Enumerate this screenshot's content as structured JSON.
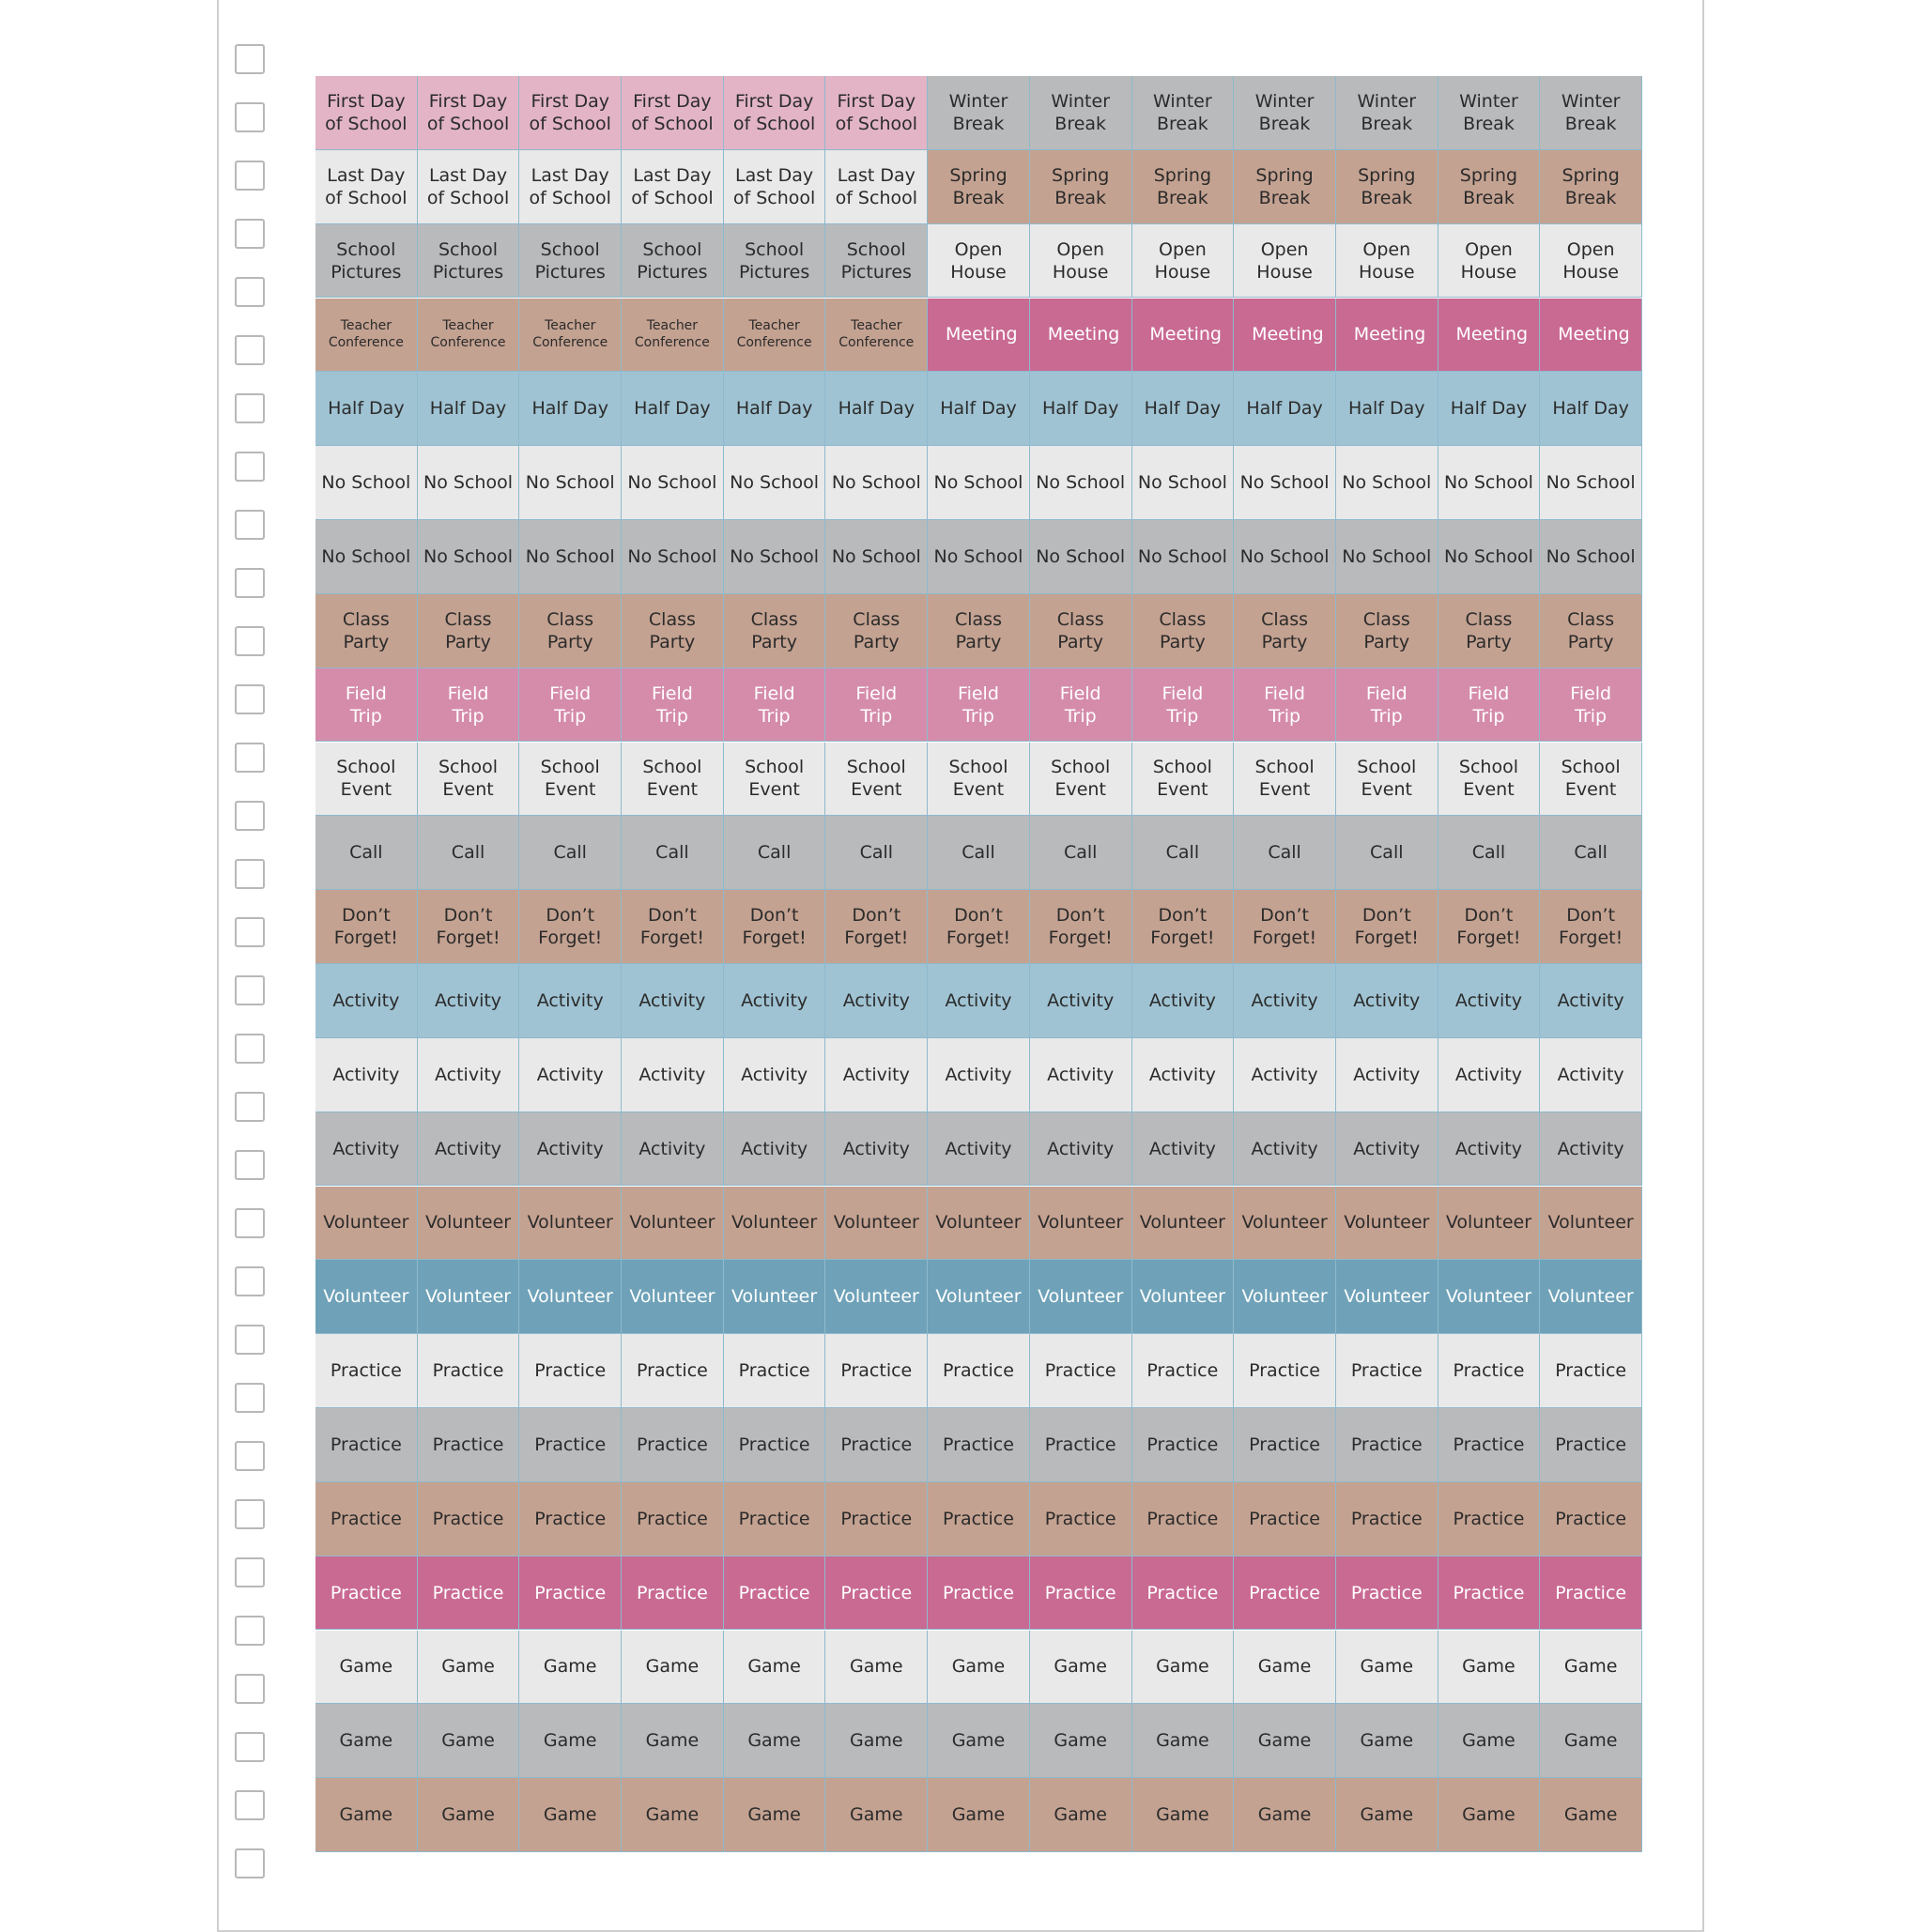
{
  "rows": [
    [
      "First Day of School",
      "First Day of School",
      "First Day of School",
      "First Day of School",
      "First Day of School",
      "First Day of School",
      "Winter Break",
      "Winter Break",
      "Winter Break",
      "Winter Break",
      "Winter Break",
      "Winter Break",
      "Winter Break"
    ],
    [
      "Last Day of School",
      "Last Day of School",
      "Last Day of School",
      "Last Day of School",
      "Last Day of School",
      "Last Day of School",
      "Spring Break",
      "Spring Break",
      "Spring Break",
      "Spring Break",
      "Spring Break",
      "Spring Break",
      "Spring Break"
    ],
    [
      "School Pictures",
      "School Pictures",
      "School Pictures",
      "School Pictures",
      "School Pictures",
      "School Pictures",
      "Open House",
      "Open House",
      "Open House",
      "Open House",
      "Open House",
      "Open House",
      "Open House"
    ],
    [
      "Teacher Conference",
      "Teacher Conference",
      "Teacher Conference",
      "Teacher Conference",
      "Teacher Conference",
      "Teacher Conference",
      "Meeting",
      "Meeting",
      "Meeting",
      "Meeting",
      "Meeting",
      "Meeting",
      "Meeting"
    ],
    [
      "Half Day",
      "Half Day",
      "Half Day",
      "Half Day",
      "Half Day",
      "Half Day",
      "Half Day",
      "Half Day",
      "Half Day",
      "Half Day",
      "Half Day",
      "Half Day",
      "Half Day"
    ],
    [
      "No School",
      "No School",
      "No School",
      "No School",
      "No School",
      "No School",
      "No School",
      "No School",
      "No School",
      "No School",
      "No School",
      "No School",
      "No School"
    ],
    [
      "No School",
      "No School",
      "No School",
      "No School",
      "No School",
      "No School",
      "No School",
      "No School",
      "No School",
      "No School",
      "No School",
      "No School",
      "No School"
    ],
    [
      "Class Party",
      "Class Party",
      "Class Party",
      "Class Party",
      "Class Party",
      "Class Party",
      "Class Party",
      "Class Party",
      "Class Party",
      "Class Party",
      "Class Party",
      "Class Party",
      "Class Party"
    ],
    [
      "Field Trip",
      "Field Trip",
      "Field Trip",
      "Field Trip",
      "Field Trip",
      "Field Trip",
      "Field Trip",
      "Field Trip",
      "Field Trip",
      "Field Trip",
      "Field Trip",
      "Field Trip",
      "Field Trip"
    ],
    [
      "School Event",
      "School Event",
      "School Event",
      "School Event",
      "School Event",
      "School Event",
      "School Event",
      "School Event",
      "School Event",
      "School Event",
      "School Event",
      "School Event",
      "School Event"
    ],
    [
      "Call",
      "Call",
      "Call",
      "Call",
      "Call",
      "Call",
      "Call",
      "Call",
      "Call",
      "Call",
      "Call",
      "Call",
      "Call"
    ],
    [
      "Don’t Forget!",
      "Don’t Forget!",
      "Don’t Forget!",
      "Don’t Forget!",
      "Don’t Forget!",
      "Don’t Forget!",
      "Don’t Forget!",
      "Don’t Forget!",
      "Don’t Forget!",
      "Don’t Forget!",
      "Don’t Forget!",
      "Don’t Forget!",
      "Don’t Forget!"
    ],
    [
      "Activity",
      "Activity",
      "Activity",
      "Activity",
      "Activity",
      "Activity",
      "Activity",
      "Activity",
      "Activity",
      "Activity",
      "Activity",
      "Activity",
      "Activity"
    ],
    [
      "Activity",
      "Activity",
      "Activity",
      "Activity",
      "Activity",
      "Activity",
      "Activity",
      "Activity",
      "Activity",
      "Activity",
      "Activity",
      "Activity",
      "Activity"
    ],
    [
      "Activity",
      "Activity",
      "Activity",
      "Activity",
      "Activity",
      "Activity",
      "Activity",
      "Activity",
      "Activity",
      "Activity",
      "Activity",
      "Activity",
      "Activity"
    ],
    [
      "Volunteer",
      "Volunteer",
      "Volunteer",
      "Volunteer",
      "Volunteer",
      "Volunteer",
      "Volunteer",
      "Volunteer",
      "Volunteer",
      "Volunteer",
      "Volunteer",
      "Volunteer",
      "Volunteer"
    ],
    [
      "Volunteer",
      "Volunteer",
      "Volunteer",
      "Volunteer",
      "Volunteer",
      "Volunteer",
      "Volunteer",
      "Volunteer",
      "Volunteer",
      "Volunteer",
      "Volunteer",
      "Volunteer",
      "Volunteer"
    ],
    [
      "Practice",
      "Practice",
      "Practice",
      "Practice",
      "Practice",
      "Practice",
      "Practice",
      "Practice",
      "Practice",
      "Practice",
      "Practice",
      "Practice",
      "Practice"
    ],
    [
      "Practice",
      "Practice",
      "Practice",
      "Practice",
      "Practice",
      "Practice",
      "Practice",
      "Practice",
      "Practice",
      "Practice",
      "Practice",
      "Practice",
      "Practice"
    ],
    [
      "Practice",
      "Practice",
      "Practice",
      "Practice",
      "Practice",
      "Practice",
      "Practice",
      "Practice",
      "Practice",
      "Practice",
      "Practice",
      "Practice",
      "Practice"
    ],
    [
      "Practice",
      "Practice",
      "Practice",
      "Practice",
      "Practice",
      "Practice",
      "Practice",
      "Practice",
      "Practice",
      "Practice",
      "Practice",
      "Practice",
      "Practice"
    ],
    [
      "Game",
      "Game",
      "Game",
      "Game",
      "Game",
      "Game",
      "Game",
      "Game",
      "Game",
      "Game",
      "Game",
      "Game",
      "Game"
    ],
    [
      "Game",
      "Game",
      "Game",
      "Game",
      "Game",
      "Game",
      "Game",
      "Game",
      "Game",
      "Game",
      "Game",
      "Game",
      "Game"
    ],
    [
      "Game",
      "Game",
      "Game",
      "Game",
      "Game",
      "Game",
      "Game",
      "Game",
      "Game",
      "Game",
      "Game",
      "Game",
      "Game"
    ]
  ]
}
